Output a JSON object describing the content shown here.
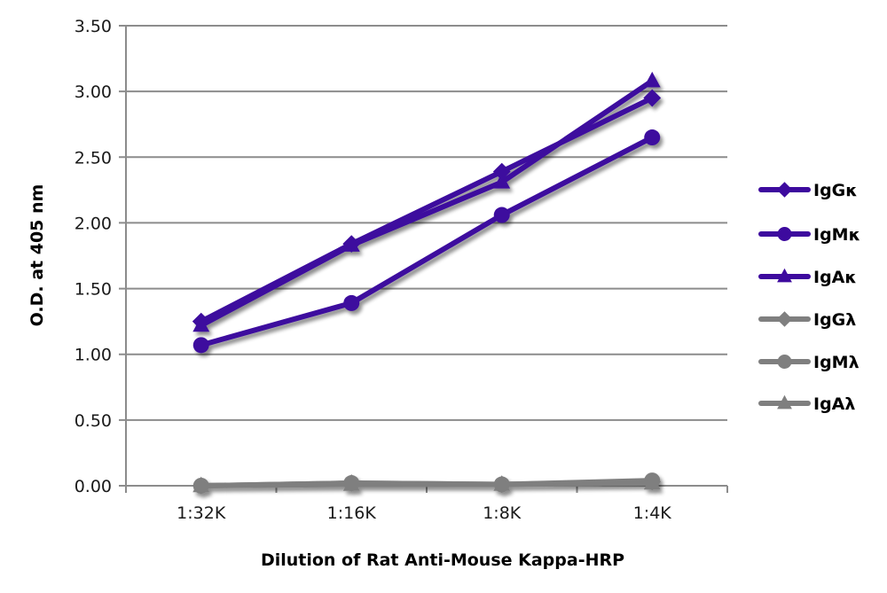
{
  "chart_data": {
    "type": "line",
    "title": "",
    "xlabel": "Dilution of Rat Anti-Mouse Kappa-HRP",
    "ylabel": "O.D. at 405 nm",
    "categories": [
      "1:32K",
      "1:16K",
      "1:8K",
      "1:4K"
    ],
    "ylim": [
      0,
      3.5
    ],
    "yticks": [
      "0.00",
      "0.50",
      "1.00",
      "1.50",
      "2.00",
      "2.50",
      "3.00",
      "3.50"
    ],
    "grid": true,
    "legend_position": "right",
    "series": [
      {
        "name": "IgGκ",
        "marker": "diamond",
        "color": "#3d0a9e",
        "values": [
          1.25,
          1.84,
          2.39,
          2.95
        ]
      },
      {
        "name": "IgMκ",
        "marker": "circle",
        "color": "#3d0a9e",
        "values": [
          1.07,
          1.39,
          2.06,
          2.65
        ]
      },
      {
        "name": "IgAκ",
        "marker": "triangle",
        "color": "#3d0a9e",
        "values": [
          1.22,
          1.83,
          2.31,
          3.08
        ]
      },
      {
        "name": "IgGλ",
        "marker": "diamond",
        "color": "#7f7f7f",
        "values": [
          0.0,
          0.02,
          0.01,
          0.03
        ]
      },
      {
        "name": "IgMλ",
        "marker": "circle",
        "color": "#7f7f7f",
        "values": [
          0.0,
          0.02,
          0.01,
          0.04
        ]
      },
      {
        "name": "IgAλ",
        "marker": "triangle",
        "color": "#7f7f7f",
        "values": [
          0.0,
          0.01,
          0.01,
          0.02
        ]
      }
    ]
  }
}
